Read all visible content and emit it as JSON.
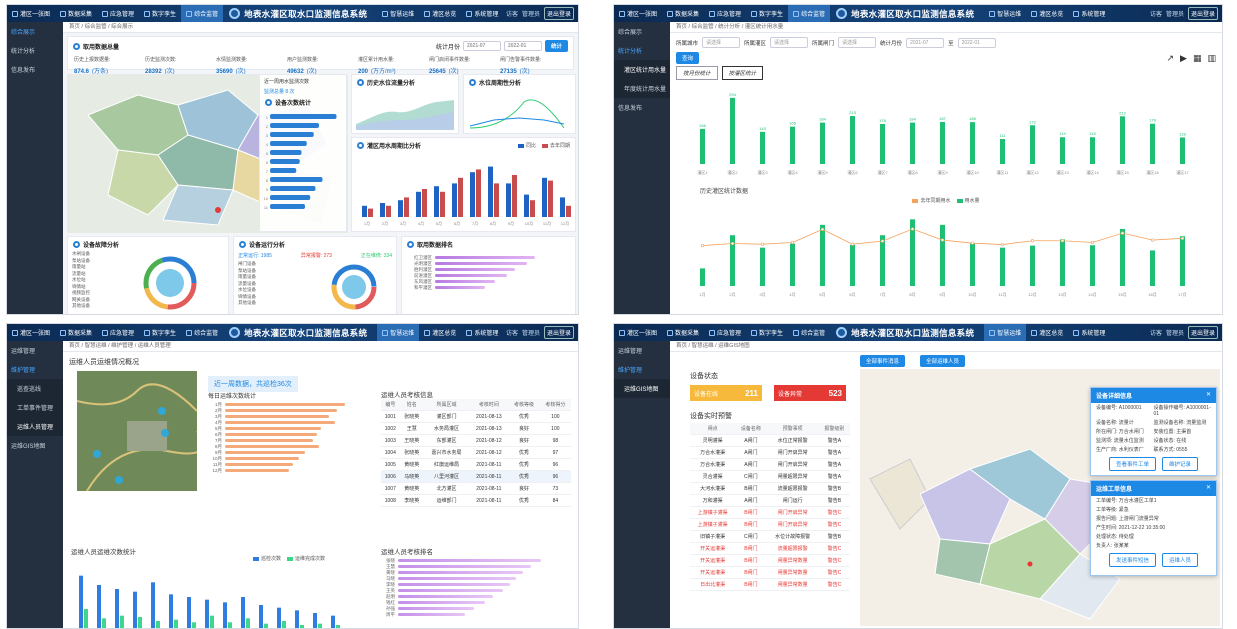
{
  "topbar": {
    "nav_left": [
      "灌区一张图",
      "数据采集",
      "应急管理",
      "数字孪生",
      "综合监管"
    ],
    "title": "地表水灌区取水口监测信息系统",
    "nav_right": [
      "智慧运维",
      "灌区总览",
      "系统管理"
    ],
    "user": "访客",
    "settings": "管理员",
    "exit": "退出登录"
  },
  "colors": {
    "accent": "#1e88e5",
    "topbar": "#0b2a52",
    "sidebar": "#24303f",
    "warn": "#e53935",
    "ok": "#2ecc71"
  },
  "p1": {
    "sidebar": [
      "综合展示",
      "统计分析",
      "信息发布"
    ],
    "breadcrumb": "首页 / 综合监管 / 综合展示",
    "section_title": "取用数据总量",
    "period_label": "统计月份",
    "date_from": "2021-07",
    "date_to": "2022-01",
    "query": "统计",
    "stats": [
      {
        "label": "历史上报数据量:",
        "value": "874.6",
        "unit": "(万条)"
      },
      {
        "label": "历史监测次数:",
        "value": "28392",
        "unit": "(次)"
      },
      {
        "label": "水情监测数量:",
        "value": "35690",
        "unit": "(次)"
      },
      {
        "label": "用户监测数量:",
        "value": "49632",
        "unit": "(次)"
      },
      {
        "label": "灌区累计用水量:",
        "value": "200",
        "unit": "(万方/m³)"
      },
      {
        "label": "闸门启闭事件数量:",
        "value": "25645",
        "unit": "(次)"
      },
      {
        "label": "闸门告警事件数量:",
        "value": "27135",
        "unit": "(次)"
      }
    ],
    "lastweek": {
      "title": "近一周用水监测次数",
      "sub": "监测总量 8 次"
    },
    "bar_title": "设备次数统计",
    "area_title": "历史水位流量分析",
    "flow_title": "水位周期性分析",
    "month_title": "灌区用水周期比分析",
    "legend": [
      "同比",
      "去年同期"
    ],
    "gate_title": "设备故障分析",
    "gate_items": [
      "水闸设备",
      "泵站设备",
      "雨量站",
      "流量站",
      "水位站",
      "墒情站",
      "视频监控",
      "网关设备",
      "其他设备"
    ],
    "run_title": "设备运行分析",
    "run_stats": [
      {
        "label": "正常运行: 1985",
        "color": "#1e88e5"
      },
      {
        "label": "异常报警: 273",
        "color": "#e53935"
      },
      {
        "label": "正在维修: 334",
        "color": "#2ecc71"
      }
    ],
    "run_items": [
      "闸门设备",
      "泵站设备",
      "雨量设备",
      "流量设备",
      "水位设备",
      "墒情设备",
      "其他设备"
    ],
    "rank_title": "取用数据排名",
    "rank_labels": [
      "红卫灌区",
      "光明灌区",
      "胜利灌区",
      "前进灌区",
      "东风灌区",
      "和平灌区"
    ]
  },
  "p2": {
    "sidebar": [
      "综合展示",
      "统计分析",
      "灌区统计用水量",
      "年度统计用水量",
      "信息发布"
    ],
    "breadcrumb": "首页 / 综合监管 / 统计分析 / 灌区统计用水量",
    "filters": [
      {
        "label": "所属城市",
        "value": "请选择"
      },
      {
        "label": "所属灌区",
        "value": "请选择"
      },
      {
        "label": "所属闸门",
        "value": "请选择"
      },
      {
        "label": "统计月份",
        "value": "2021-07"
      },
      {
        "label": "至",
        "value": "2022-01"
      }
    ],
    "query": "查询",
    "tabs": [
      "按月份统计",
      "按灌区统计"
    ],
    "chart2_title": "历史灌区统计数据",
    "legend": [
      "去年同期用水",
      "用水量"
    ]
  },
  "p3": {
    "sidebar": [
      "运维管理",
      "维护管理",
      "巡查巡线",
      "工单事件管理",
      "运维人员管理",
      "运维GIS地图"
    ],
    "breadcrumb": "首页 / 智慧运维 / 维护管理 / 运维人员管理",
    "overview_title": "运维人员运维情况概况",
    "week_note": "近一周数据，共巡检36次",
    "daily_title": "每日运维次数统计",
    "daily_labels": [
      "1月",
      "2月",
      "3月",
      "4月",
      "5月",
      "6月",
      "7月",
      "8月",
      "9月",
      "10月",
      "11月",
      "12月"
    ],
    "table_title": "运维人员考核信息",
    "table_headers": [
      "编号",
      "姓名",
      "所属区域",
      "考核时间",
      "考核等级",
      "考核得分"
    ],
    "table_rows": [
      [
        "1001",
        "张晓英",
        "灌区部门",
        "2021-08-13",
        "优秀",
        "100"
      ],
      [
        "1002",
        "王慧",
        "水务局灌区",
        "2021-08-13",
        "良好",
        "100"
      ],
      [
        "1003",
        "王晓英",
        "东部灌区",
        "2021-08-12",
        "良好",
        "98"
      ],
      [
        "1004",
        "张晓英",
        "嘉兴市水务局",
        "2021-08-12",
        "优秀",
        "97"
      ],
      [
        "1005",
        "黄晓英",
        "红旗运维局",
        "2021-08-11",
        "优秀",
        "96"
      ],
      [
        "1006",
        "马晓英",
        "八里河灌区",
        "2021-08-11",
        "优秀",
        "96"
      ],
      [
        "1007",
        "黄晓英",
        "北方灌区",
        "2021-08-11",
        "良好",
        "73"
      ],
      [
        "1008",
        "李晓英",
        "运维部门",
        "2021-08-11",
        "优秀",
        "84"
      ]
    ],
    "count_title": "运维人员运维次数统计",
    "legend": [
      "巡检次数",
      "运维完成次数"
    ],
    "rank_title": "运维人员考核排名",
    "rank_labels": [
      "张晓",
      "王慧",
      "黄晓",
      "马晓",
      "李晓",
      "王英",
      "赵明",
      "钱红",
      "孙强",
      "周平"
    ]
  },
  "p4": {
    "sidebar": [
      "运维管理",
      "维护管理",
      "运维GIS地图"
    ],
    "breadcrumb": "首页 / 智慧运维 / 运维GIS地图",
    "status_title": "设备状态",
    "online": {
      "label": "设备在线",
      "value": "211"
    },
    "fault": {
      "label": "设备异常",
      "value": "523"
    },
    "warn_title": "设备实时预警",
    "buttons": [
      "全部事件消息",
      "全部运维人员"
    ],
    "headers": [
      "闸点",
      "设备名称",
      "预警事项",
      "报警级别"
    ],
    "rows": [
      [
        "灵明灌渠",
        "A闸门",
        "水位正常报警",
        "警告A",
        false
      ],
      [
        "万合水灌渠",
        "A闸门",
        "闸门开启异常",
        "警告A",
        false
      ],
      [
        "万合水灌渠",
        "A闸门",
        "闸门开启异常",
        "警告A",
        false
      ],
      [
        "灵合灌渠",
        "C闸门",
        "闸量超限异常",
        "警告A",
        false
      ],
      [
        "大河水灌渠",
        "B闸门",
        "流量超限报警",
        "警告B",
        false
      ],
      [
        "万和灌渠",
        "A闸门",
        "闸门运行",
        "警告B",
        false
      ],
      [
        "上游镇子灌渠",
        "B闸门",
        "闸门开启异常",
        "警告C",
        true
      ],
      [
        "上游镇子灌渠",
        "B闸门",
        "闸门开启异常",
        "警告C",
        true
      ],
      [
        "旧镇子灌渠",
        "C闸门",
        "水位计故障报警",
        "警告B",
        false
      ],
      [
        "开关运灌渠",
        "B闸门",
        "流量超限报警",
        "警告C",
        true
      ],
      [
        "开关运灌渠",
        "B闸门",
        "闸量异常数量",
        "警告C",
        true
      ],
      [
        "开关运灌渠",
        "B闸门",
        "闸量异常数量",
        "警告C",
        true
      ],
      [
        "日出北灌渠",
        "B闸门",
        "闸量异常数量",
        "警告C",
        true
      ]
    ],
    "dev_popup": {
      "title": "设备详细信息",
      "rows": [
        [
          "设备编号: A1000001",
          "设备操作编号: A1000001-01"
        ],
        [
          "设备名称: 流量计",
          "监测设备名称: 流量监测"
        ],
        [
          "所在闸门: 万合水闸门",
          "安装位置: 主渠首"
        ],
        [
          "监测项: 流量水位监测",
          "设备状态: 在线"
        ],
        [
          "生产厂商: 水利仪表厂",
          "联系方式: 0555"
        ]
      ],
      "btn1": "查看事件工单",
      "btn2": "维护记录"
    },
    "order_popup": {
      "title": "运维工单信息",
      "rows": [
        "工单编号: 万合水灌区工单1",
        "工单等级: 紧急",
        "报告问题: 上游闸门流量异常",
        "产生时间: 2021-12-22 10:35:00",
        "处理状态: 待处理",
        "负责人: 张某某"
      ],
      "btn1": "发送事件短信",
      "btn2": "运维人员"
    }
  },
  "chart_data": [
    {
      "type": "bar",
      "title": "按灌区统计用水量",
      "categories": [
        "灌区1",
        "灌区2",
        "灌区3",
        "灌区4",
        "灌区5",
        "灌区6",
        "灌区7",
        "灌区8",
        "灌区9",
        "灌区10",
        "灌区11",
        "灌区12",
        "灌区13",
        "灌区14",
        "灌区15",
        "灌区16",
        "灌区17"
      ],
      "values": [
        156,
        294,
        143,
        166,
        184,
        213,
        178,
        184,
        187,
        186,
        111,
        172,
        119,
        119,
        212,
        179,
        118
      ],
      "ylim": [
        0,
        320
      ]
    },
    {
      "type": "bar",
      "title": "历史灌区统计数据",
      "categories": [
        "1月",
        "2月",
        "3月",
        "4月",
        "5月",
        "6月",
        "7月",
        "8月",
        "9月",
        "10月",
        "11月",
        "12月",
        "13月",
        "14月",
        "15月",
        "16月",
        "17月"
      ],
      "series": [
        {
          "name": "用水量",
          "values": [
            51,
            147,
            111,
            123,
            177,
            119,
            147,
            193,
            177,
            123,
            111,
            117,
            135,
            118,
            165,
            103,
            144
          ]
        },
        {
          "name": "去年同期用水",
          "values": [
            117,
            123,
            121,
            126,
            164,
            121,
            130,
            165,
            133,
            124,
            120,
            131,
            131,
            126,
            153,
            133,
            138
          ]
        }
      ],
      "ylim": [
        0,
        220
      ]
    },
    {
      "type": "bar",
      "title": "设备次数统计",
      "categories": [
        "1",
        "2",
        "3",
        "4",
        "5",
        "6",
        "7",
        "8",
        "9",
        "10",
        "11"
      ],
      "values": [
        380,
        280,
        250,
        210,
        180,
        170,
        150,
        300,
        260,
        230,
        200
      ]
    },
    {
      "type": "bar",
      "title": "灌区用水周期比分析",
      "categories": [
        "1月",
        "2月",
        "3月",
        "4月",
        "5月",
        "6月",
        "7月",
        "8月",
        "9月",
        "10月",
        "11月",
        "12月"
      ],
      "series": [
        {
          "name": "同比",
          "values": [
            20,
            25,
            30,
            45,
            55,
            60,
            80,
            90,
            60,
            40,
            70,
            35
          ]
        },
        {
          "name": "去年同期",
          "values": [
            15,
            20,
            35,
            50,
            45,
            70,
            85,
            60,
            75,
            30,
            65,
            20
          ]
        }
      ]
    },
    {
      "type": "bar",
      "title": "运维人员运维次数统计",
      "categories": [
        "1",
        "2",
        "3",
        "4",
        "5",
        "6",
        "7",
        "8",
        "9",
        "10",
        "11",
        "12",
        "13",
        "14",
        "15"
      ],
      "series": [
        {
          "name": "巡检次数",
          "values": [
            40,
            33,
            30,
            28,
            35,
            26,
            24,
            22,
            20,
            24,
            18,
            16,
            14,
            12,
            10
          ]
        },
        {
          "name": "运维完成次数",
          "values": [
            15,
            8,
            10,
            9,
            6,
            7,
            5,
            10,
            5,
            8,
            4,
            6,
            3,
            4,
            3
          ]
        }
      ]
    }
  ]
}
